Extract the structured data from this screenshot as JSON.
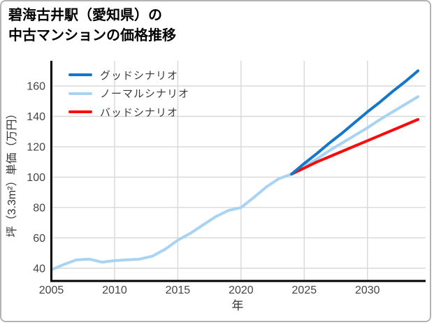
{
  "title": {
    "line1": "碧海古井駅（愛知県）の",
    "line2": "中古マンションの価格推移"
  },
  "chart_data": {
    "type": "line",
    "title": "碧海古井駅（愛知県）の中古マンションの価格推移",
    "xlabel": "年",
    "ylabel": "坪（3.3m²）単価（万円）",
    "x_ticks": [
      2005,
      2010,
      2015,
      2020,
      2025,
      2030
    ],
    "y_ticks": [
      40,
      60,
      80,
      100,
      120,
      140,
      160
    ],
    "xlim": [
      2005,
      2034.6
    ],
    "ylim": [
      31.6,
      176.6
    ],
    "grid": true,
    "legend_position": "upper-left",
    "grid_color": "#d8d8d8",
    "axis_color": "#000000",
    "tick_label_color": "#454545",
    "axis_label_color": "#333333",
    "series": [
      {
        "name": "グッドシナリオ",
        "color": "#1577c9",
        "x": [
          2024,
          2025,
          2026,
          2027,
          2028,
          2029,
          2030,
          2031,
          2032,
          2033,
          2034
        ],
        "values": [
          102,
          109,
          115.5,
          122.5,
          129,
          136,
          143,
          149.5,
          156.5,
          163,
          170
        ]
      },
      {
        "name": "ノーマルシナリオ",
        "color": "#a9d3f2",
        "x": [
          2005,
          2006,
          2007,
          2008,
          2009,
          2010,
          2011,
          2012,
          2013,
          2014,
          2015,
          2016,
          2017,
          2018,
          2019,
          2020,
          2021,
          2022,
          2023,
          2024,
          2025,
          2026,
          2027,
          2028,
          2029,
          2030,
          2031,
          2032,
          2033,
          2034
        ],
        "values": [
          39,
          42.5,
          45.5,
          46,
          44,
          45,
          45.5,
          46,
          48,
          52.5,
          58.5,
          63,
          68.5,
          74,
          78,
          80,
          86.5,
          93.5,
          99,
          102,
          107,
          112,
          117.5,
          122.5,
          127.5,
          132.5,
          138,
          143,
          148,
          153
        ]
      },
      {
        "name": "バッドシナリオ",
        "color": "#fa0a0a",
        "x": [
          2024,
          2025,
          2026,
          2027,
          2028,
          2029,
          2030,
          2031,
          2032,
          2033,
          2034
        ],
        "values": [
          102,
          106,
          110,
          113.5,
          117,
          120.5,
          124,
          127.5,
          131,
          134.5,
          138
        ]
      }
    ]
  }
}
